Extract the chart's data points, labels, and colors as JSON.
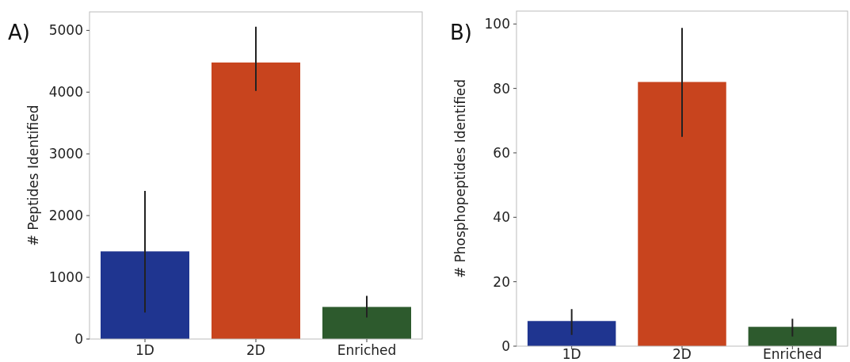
{
  "chart_data": [
    {
      "type": "bar",
      "title": "A)",
      "ylabel": "# Peptides Identified",
      "categories": [
        "1D",
        "2D",
        "Enriched"
      ],
      "values": [
        1420,
        4480,
        520
      ],
      "colors": [
        "#1f3590",
        "#c8441e",
        "#2d5a2d"
      ],
      "errors": [
        [
          430,
          2400
        ],
        [
          4020,
          5060
        ],
        [
          350,
          700
        ]
      ],
      "ylim": [
        0,
        5300
      ],
      "yticks": [
        0,
        1000,
        2000,
        3000,
        4000,
        5000
      ],
      "grid": false
    },
    {
      "type": "bar",
      "title": "B)",
      "ylabel": "# Phosphopeptides Identified",
      "categories": [
        "1D",
        "2D",
        "Enriched"
      ],
      "values": [
        7.8,
        82,
        6
      ],
      "colors": [
        "#1f3590",
        "#c8441e",
        "#2d5a2d"
      ],
      "errors": [
        [
          3.5,
          11.5
        ],
        [
          65,
          98.8
        ],
        [
          3,
          8.5
        ]
      ],
      "ylim": [
        0,
        104
      ],
      "yticks": [
        0,
        20,
        40,
        60,
        80,
        100
      ],
      "grid": false
    }
  ]
}
